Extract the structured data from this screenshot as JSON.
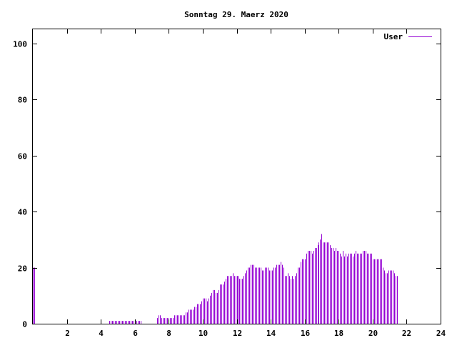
{
  "chart_data": {
    "type": "bar",
    "title": "Sonntag 29. Maerz 2020",
    "xlabel": "",
    "ylabel": "",
    "xlim": [
      0,
      24
    ],
    "ylim": [
      0,
      105
    ],
    "xticks": [
      2,
      4,
      6,
      8,
      10,
      12,
      14,
      16,
      18,
      20,
      22,
      24
    ],
    "yticks": [
      0,
      20,
      40,
      60,
      80,
      100
    ],
    "grid": false,
    "legend_position": "top-right",
    "bar_color": "#9400d3",
    "sample_interval_minutes": 5,
    "series": [
      {
        "name": "User",
        "color": "#9400d3",
        "values": [
          20,
          20,
          0,
          0,
          0,
          0,
          0,
          0,
          0,
          0,
          0,
          0,
          0,
          0,
          0,
          0,
          0,
          0,
          0,
          0,
          0,
          0,
          0,
          0,
          0,
          0,
          0,
          0,
          0,
          0,
          0,
          0,
          0,
          0,
          0,
          0,
          0,
          0,
          0,
          0,
          0,
          0,
          0,
          0,
          0,
          0,
          0,
          0,
          0,
          0,
          0,
          0,
          0,
          0,
          1,
          1,
          1,
          1,
          1,
          1,
          1,
          1,
          1,
          1,
          1,
          1,
          1,
          1,
          1,
          1,
          1,
          1,
          1,
          1,
          1,
          1,
          1,
          0,
          0,
          0,
          0,
          0,
          0,
          0,
          0,
          0,
          0,
          0,
          2,
          3,
          3,
          2,
          2,
          2,
          2,
          2,
          2,
          2,
          2,
          2,
          3,
          3,
          3,
          3,
          3,
          3,
          3,
          3,
          4,
          4,
          5,
          5,
          5,
          5,
          6,
          6,
          7,
          7,
          7,
          8,
          9,
          9,
          9,
          8,
          9,
          10,
          11,
          12,
          12,
          11,
          11,
          12,
          14,
          14,
          14,
          15,
          16,
          17,
          17,
          17,
          17,
          18,
          17,
          17,
          17,
          17,
          16,
          16,
          16,
          17,
          18,
          19,
          20,
          20,
          21,
          21,
          21,
          20,
          20,
          20,
          20,
          20,
          19,
          19,
          20,
          20,
          20,
          19,
          19,
          19,
          20,
          20,
          21,
          21,
          21,
          22,
          21,
          20,
          17,
          17,
          18,
          17,
          16,
          17,
          16,
          17,
          18,
          20,
          20,
          22,
          23,
          23,
          23,
          25,
          26,
          26,
          26,
          25,
          26,
          27,
          27,
          28,
          29,
          30,
          32,
          29,
          29,
          29,
          29,
          29,
          28,
          27,
          27,
          26,
          27,
          26,
          26,
          25,
          24,
          26,
          24,
          25,
          24,
          25,
          25,
          25,
          24,
          25,
          26,
          25,
          25,
          25,
          25,
          26,
          26,
          26,
          25,
          25,
          25,
          25,
          23,
          23,
          23,
          23,
          23,
          23,
          23,
          20,
          19,
          18,
          18,
          19,
          19,
          19,
          19,
          18,
          17,
          17
        ]
      }
    ]
  }
}
